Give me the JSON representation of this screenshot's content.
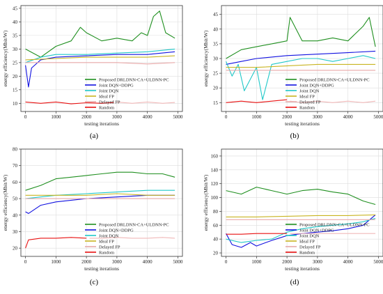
{
  "chart_data": [
    {
      "panel_label": "(a)",
      "type": "line",
      "xlabel": "testing iterations",
      "ylabel": "energy efficiency(Mbit/W)",
      "xlim": [
        -150,
        5150
      ],
      "ylim": [
        7,
        46
      ],
      "xticks": [
        0,
        1000,
        2000,
        3000,
        4000,
        5000
      ],
      "yticks": [
        10,
        15,
        20,
        25,
        30,
        35,
        40,
        45
      ],
      "legend_position": "lower-right",
      "grid": true,
      "series": [
        {
          "name": "Proposed DRLDNN-CA+ULDNN-PC",
          "color": "#1f8f1f",
          "x": [
            0,
            500,
            1000,
            1500,
            1800,
            2000,
            2500,
            3000,
            3500,
            3800,
            4000,
            4200,
            4400,
            4600,
            4900
          ],
          "y": [
            30,
            27,
            31,
            33,
            38,
            36,
            33,
            34,
            33,
            36,
            35,
            42,
            44,
            36,
            34
          ]
        },
        {
          "name": "Joint DQN+DDPG",
          "color": "#1010e0",
          "x": [
            0,
            100,
            200,
            500,
            1000,
            2000,
            3000,
            4000,
            4900
          ],
          "y": [
            24,
            16,
            23,
            26,
            27,
            27.5,
            28,
            28,
            29
          ]
        },
        {
          "name": "Joint DQN",
          "color": "#20c8c8",
          "x": [
            0,
            500,
            1000,
            2000,
            3000,
            4000,
            4900
          ],
          "y": [
            25,
            27,
            28,
            28,
            28.5,
            29,
            30
          ]
        },
        {
          "name": "Ideal FP",
          "color": "#c8b420",
          "x": [
            0,
            1000,
            2000,
            3000,
            4000,
            4900
          ],
          "y": [
            26,
            26.5,
            27,
            27,
            27,
            27.5
          ]
        },
        {
          "name": "Delayed FP",
          "color": "#e8a8a8",
          "x": [
            0,
            1000,
            2000,
            3000,
            4000,
            4900
          ],
          "y": [
            25,
            25,
            25,
            25,
            24.5,
            25
          ]
        },
        {
          "name": "Random",
          "color": "#e81010",
          "x": [
            0,
            500,
            1000,
            1500,
            2000,
            2500,
            2900
          ],
          "y": [
            10.5,
            10,
            10.5,
            9.8,
            10.2,
            10,
            10.3
          ]
        },
        {
          "name": "",
          "color": "#f0b8b8",
          "x": [
            3000,
            3500,
            4000,
            4500,
            4900
          ],
          "y": [
            10.5,
            10,
            10.5,
            10,
            10.3
          ]
        }
      ]
    },
    {
      "panel_label": "(b)",
      "type": "line",
      "xlabel": "testing iterations",
      "ylabel": "energy efficiency(Mbit/W)",
      "xlim": [
        -150,
        5150
      ],
      "ylim": [
        12,
        48
      ],
      "xticks": [
        0,
        1000,
        2000,
        3000,
        4000,
        5000
      ],
      "yticks": [
        15,
        20,
        25,
        30,
        35,
        40,
        45
      ],
      "legend_position": "lower-right",
      "grid": true,
      "series": [
        {
          "name": "Proposed DRLDNN-CA+ULDNN-PC",
          "color": "#1f8f1f",
          "x": [
            0,
            500,
            1000,
            1500,
            2000,
            2100,
            2500,
            3000,
            3500,
            4000,
            4500,
            4700,
            4900
          ],
          "y": [
            30,
            33,
            34,
            35,
            36,
            44,
            36,
            36,
            37,
            36,
            41,
            44,
            34
          ]
        },
        {
          "name": "Joint DQN+DDPG",
          "color": "#1010e0",
          "x": [
            0,
            500,
            1000,
            2000,
            3000,
            4000,
            4900
          ],
          "y": [
            28,
            29,
            30,
            31,
            31.5,
            32,
            32.5
          ]
        },
        {
          "name": "Joint DQN",
          "color": "#20c8c8",
          "x": [
            0,
            200,
            400,
            600,
            1000,
            1200,
            1500,
            2000,
            2500,
            3000,
            3500,
            4000,
            4500,
            4900
          ],
          "y": [
            29,
            24,
            28,
            19,
            27,
            16,
            28,
            29,
            30,
            30,
            29,
            30,
            31,
            30
          ]
        },
        {
          "name": "Ideal FP",
          "color": "#c8b420",
          "x": [
            0,
            1000,
            2000,
            3000,
            4000,
            4900
          ],
          "y": [
            27,
            27,
            27.5,
            28,
            28,
            28
          ]
        },
        {
          "name": "Delayed FP",
          "color": "#e8a8a8",
          "x": [
            0,
            1000,
            2000,
            3000,
            4000,
            4900
          ],
          "y": [
            26,
            26,
            26,
            26,
            26,
            26
          ]
        },
        {
          "name": "Random",
          "color": "#e81010",
          "x": [
            0,
            500,
            1000,
            1500,
            2000
          ],
          "y": [
            15,
            15.5,
            15,
            15.5,
            16
          ]
        },
        {
          "name": "",
          "color": "#f0b8b8",
          "x": [
            2100,
            2500,
            3000,
            3500,
            4000,
            4500,
            4900
          ],
          "y": [
            15.5,
            15,
            15.5,
            15,
            15.5,
            15,
            15.5
          ]
        }
      ]
    },
    {
      "panel_label": "(c)",
      "type": "line",
      "xlabel": "testing iterations",
      "ylabel": "energy efficiency(Mbit/W)",
      "xlim": [
        -150,
        5150
      ],
      "ylim": [
        15,
        80
      ],
      "xticks": [
        0,
        1000,
        2000,
        3000,
        4000,
        5000
      ],
      "yticks": [
        20,
        30,
        40,
        50,
        60,
        70,
        80
      ],
      "legend_position": "lower-right",
      "grid": true,
      "series": [
        {
          "name": "Proposed DRLDNN-CA+ULDNN-PC",
          "color": "#1f8f1f",
          "x": [
            0,
            500,
            1000,
            1500,
            2000,
            2500,
            3000,
            3500,
            4000,
            4500,
            4900
          ],
          "y": [
            55,
            58,
            62,
            63,
            64,
            65,
            66,
            66,
            65,
            65,
            63
          ]
        },
        {
          "name": "Joint DQN+DDPG",
          "color": "#1010e0",
          "x": [
            0,
            100,
            500,
            1000,
            2000,
            3000,
            4000,
            4900
          ],
          "y": [
            42,
            41,
            46,
            48,
            50,
            51,
            52,
            52
          ]
        },
        {
          "name": "Joint DQN",
          "color": "#20c8c8",
          "x": [
            0,
            500,
            1000,
            2000,
            3000,
            4000,
            4900
          ],
          "y": [
            50,
            51,
            52,
            53,
            54,
            55,
            55
          ]
        },
        {
          "name": "Ideal FP",
          "color": "#c8b420",
          "x": [
            0,
            1000,
            2000,
            3000,
            4000,
            4900
          ],
          "y": [
            52,
            52,
            52,
            53,
            52,
            52
          ]
        },
        {
          "name": "Delayed FP",
          "color": "#e8a8a8",
          "x": [
            0,
            1000,
            2000,
            3000,
            4000,
            4900
          ],
          "y": [
            50,
            50,
            50,
            50,
            50,
            50
          ]
        },
        {
          "name": "Random",
          "color": "#e81010",
          "x": [
            0,
            100,
            500,
            1000,
            1500,
            2000
          ],
          "y": [
            20,
            25,
            26,
            26,
            26.5,
            26
          ]
        },
        {
          "name": "",
          "color": "#f0b8b8",
          "x": [
            2100,
            2500,
            3000,
            3500,
            4000,
            4500,
            4900
          ],
          "y": [
            26,
            26,
            26.5,
            26,
            26,
            26.5,
            26
          ]
        }
      ]
    },
    {
      "panel_label": "(d)",
      "type": "line",
      "xlabel": "testing iterations",
      "ylabel": "energy efficiency(Mbit/W)",
      "xlim": [
        -150,
        5150
      ],
      "ylim": [
        15,
        170
      ],
      "xticks": [
        0,
        1000,
        2000,
        3000,
        4000,
        5000
      ],
      "yticks": [
        20,
        40,
        60,
        80,
        100,
        120,
        140,
        160
      ],
      "legend_position": "lower-right",
      "grid": true,
      "series": [
        {
          "name": "Proposed DRLDNN-CA+ULDNN-PC",
          "color": "#1f8f1f",
          "x": [
            0,
            500,
            1000,
            1500,
            2000,
            2500,
            3000,
            3500,
            4000,
            4500,
            4900
          ],
          "y": [
            110,
            105,
            115,
            110,
            105,
            110,
            112,
            108,
            105,
            95,
            90
          ]
        },
        {
          "name": "Joint DQN+DDPG",
          "color": "#1010e0",
          "x": [
            0,
            200,
            500,
            800,
            1000,
            1500,
            2000,
            2500,
            3000,
            3500,
            4000,
            4500,
            4900
          ],
          "y": [
            48,
            32,
            28,
            35,
            30,
            38,
            45,
            48,
            50,
            52,
            55,
            60,
            75
          ]
        },
        {
          "name": "Joint DQN",
          "color": "#20c8c8",
          "x": [
            0,
            500,
            1000,
            1500,
            2000,
            2500,
            3000,
            3500,
            4000,
            4500,
            4900
          ],
          "y": [
            40,
            35,
            38,
            40,
            50,
            55,
            58,
            60,
            62,
            65,
            70
          ]
        },
        {
          "name": "Ideal FP",
          "color": "#c8b420",
          "x": [
            0,
            1000,
            2000,
            3000,
            4000,
            4900
          ],
          "y": [
            72,
            72,
            73,
            74,
            74,
            75
          ]
        },
        {
          "name": "Delayed FP",
          "color": "#e8a8a8",
          "x": [
            0,
            1000,
            2000,
            3000,
            4000,
            4900
          ],
          "y": [
            68,
            68,
            68,
            68,
            68,
            68
          ]
        },
        {
          "name": "Random",
          "color": "#e81010",
          "x": [
            0,
            500,
            1000,
            1500,
            2000
          ],
          "y": [
            47,
            47,
            48,
            48,
            48
          ]
        },
        {
          "name": "",
          "color": "#f0b8b8",
          "x": [
            2100,
            2500,
            3000,
            3500,
            4000,
            4500,
            4900
          ],
          "y": [
            48,
            48,
            48,
            48,
            48,
            48,
            48
          ]
        }
      ]
    }
  ]
}
